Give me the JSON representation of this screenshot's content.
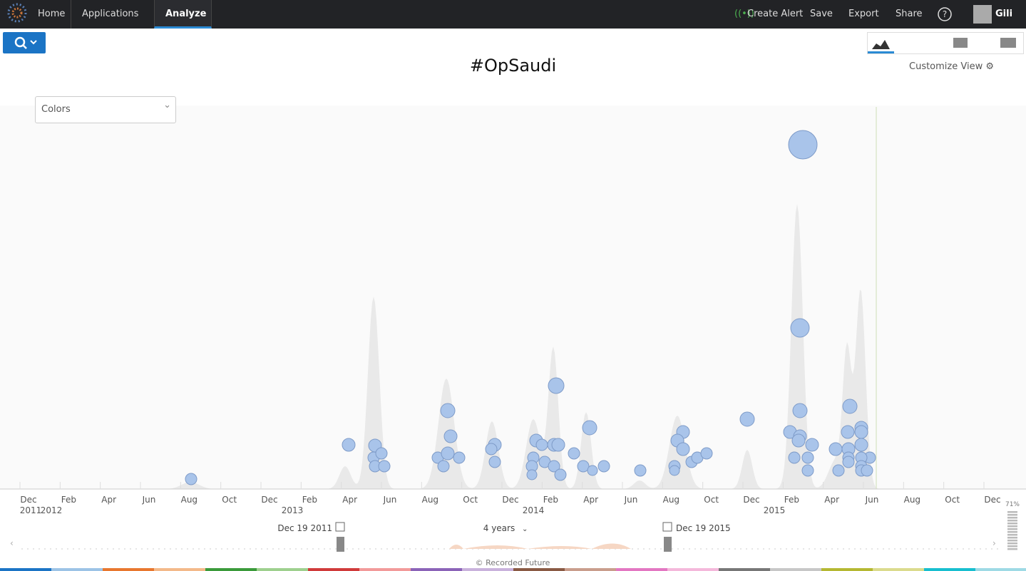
{
  "nav": {
    "items": [
      "Home",
      "Applications",
      "Analyze"
    ],
    "actions": [
      "Create Alert",
      "Save",
      "Export",
      "Share"
    ],
    "user": "Gili"
  },
  "title": "#OpSaudi",
  "customize": "Customize View",
  "colors_filter": "Colors",
  "timeline": {
    "months": [
      "Dec",
      "Feb",
      "Apr",
      "Jun",
      "Aug",
      "Oct",
      "Dec",
      "Feb",
      "Apr",
      "Jun",
      "Aug",
      "Oct",
      "Dec",
      "Feb",
      "Apr",
      "Jun",
      "Aug",
      "Oct",
      "Dec",
      "Feb",
      "Apr",
      "Jun",
      "Aug",
      "Oct",
      "Dec"
    ],
    "years": [
      "2011",
      "2012",
      "2013",
      "2014",
      "2015"
    ]
  },
  "range": {
    "start": "Dec 19 2011",
    "span": "4 years",
    "end": "Dec 19 2015"
  },
  "zoom": "71%",
  "footer": "© Recorded Future"
}
